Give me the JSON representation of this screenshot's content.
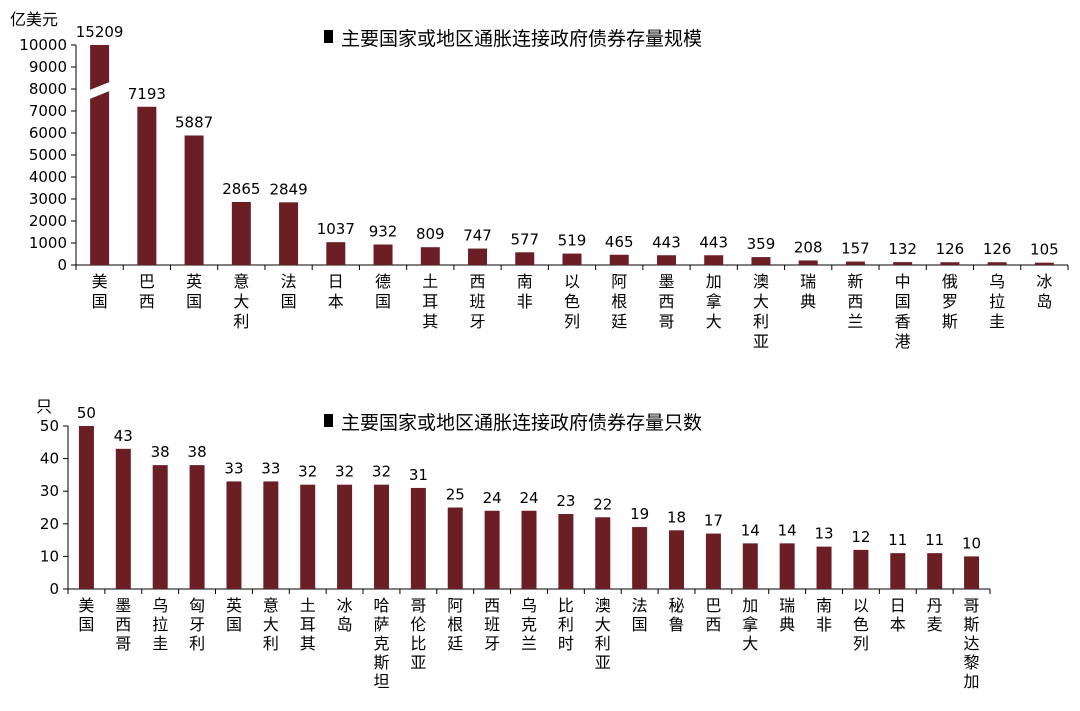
{
  "colors": {
    "bar": "#6b1f24",
    "axis": "#000000",
    "background": "#ffffff"
  },
  "chart_data": [
    {
      "type": "bar",
      "title": "主要国家或地区通胀连接政府债券存量规模",
      "ylabel": "亿美元",
      "ylim": [
        0,
        10000
      ],
      "yticks": [
        0,
        1000,
        2000,
        3000,
        4000,
        5000,
        6000,
        7000,
        8000,
        9000,
        10000
      ],
      "axis_break": true,
      "legend": "top-center",
      "grid": false,
      "categories": [
        "美国",
        "巴西",
        "英国",
        "意大利",
        "法国",
        "日本",
        "德国",
        "土耳其",
        "西班牙",
        "南非",
        "以色列",
        "阿根廷",
        "墨西哥",
        "加拿大",
        "澳大利亚",
        "瑞典",
        "新西兰",
        "中国香港",
        "俄罗斯",
        "乌拉圭",
        "冰岛"
      ],
      "values": [
        15209,
        7193,
        5887,
        2865,
        2849,
        1037,
        932,
        809,
        747,
        577,
        519,
        465,
        443,
        443,
        359,
        208,
        157,
        132,
        126,
        126,
        105
      ]
    },
    {
      "type": "bar",
      "title": "主要国家或地区通胀连接政府债券存量只数",
      "ylabel": "只",
      "ylim": [
        0,
        50
      ],
      "yticks": [
        0,
        10,
        20,
        30,
        40,
        50
      ],
      "legend": "top-center",
      "grid": false,
      "categories": [
        "美国",
        "墨西哥",
        "乌拉圭",
        "匈牙利",
        "英国",
        "意大利",
        "土耳其",
        "冰岛",
        "哈萨克斯坦",
        "哥伦比亚",
        "阿根廷",
        "西班牙",
        "乌克兰",
        "比利时",
        "澳大利亚",
        "法国",
        "秘鲁",
        "巴西",
        "加拿大",
        "瑞典",
        "南非",
        "以色列",
        "日本",
        "丹麦",
        "哥斯达黎加"
      ],
      "values": [
        50,
        43,
        38,
        38,
        33,
        33,
        32,
        32,
        32,
        31,
        25,
        24,
        24,
        23,
        22,
        19,
        18,
        17,
        14,
        14,
        13,
        12,
        11,
        11,
        10
      ]
    }
  ]
}
